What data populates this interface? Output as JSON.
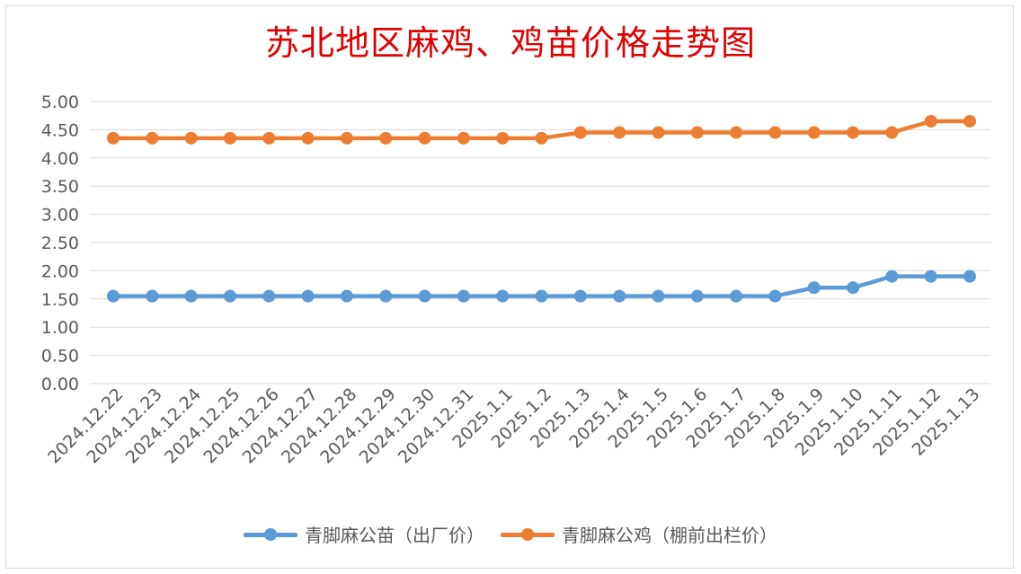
{
  "chart_data": {
    "type": "line",
    "title": "苏北地区麻鸡、鸡苗价格走势图",
    "xlabel": "",
    "ylabel": "",
    "ylim": [
      0,
      5
    ],
    "yticks": [
      "0.00",
      "0.50",
      "1.00",
      "1.50",
      "2.00",
      "2.50",
      "3.00",
      "3.50",
      "4.00",
      "4.50",
      "5.00"
    ],
    "grid": true,
    "legend_position": "bottom",
    "categories": [
      "2024.12.22",
      "2024.12.23",
      "2024.12.24",
      "2024.12.25",
      "2024.12.26",
      "2024.12.27",
      "2024.12.28",
      "2024.12.29",
      "2024.12.30",
      "2024.12.31",
      "2025.1.1",
      "2025.1.2",
      "2025.1.3",
      "2025.1.4",
      "2025.1.5",
      "2025.1.6",
      "2025.1.7",
      "2025.1.8",
      "2025.1.9",
      "2025.1.10",
      "2025.1.11",
      "2025.1.12",
      "2025.1.13"
    ],
    "series": [
      {
        "name": "青脚麻公苗（出厂价）",
        "color": "#5b9bd5",
        "values": [
          1.55,
          1.55,
          1.55,
          1.55,
          1.55,
          1.55,
          1.55,
          1.55,
          1.55,
          1.55,
          1.55,
          1.55,
          1.55,
          1.55,
          1.55,
          1.55,
          1.55,
          1.55,
          1.7,
          1.7,
          1.9,
          1.9,
          1.9
        ]
      },
      {
        "name": "青脚麻公鸡（棚前出栏价）",
        "color": "#ed7d31",
        "values": [
          4.35,
          4.35,
          4.35,
          4.35,
          4.35,
          4.35,
          4.35,
          4.35,
          4.35,
          4.35,
          4.35,
          4.35,
          4.45,
          4.45,
          4.45,
          4.45,
          4.45,
          4.45,
          4.45,
          4.45,
          4.45,
          4.65,
          4.65
        ]
      }
    ]
  }
}
